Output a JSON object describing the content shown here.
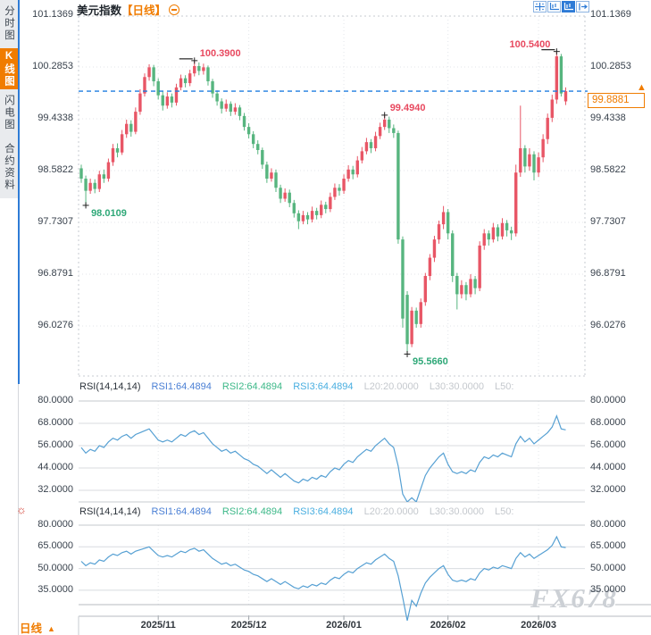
{
  "app": {
    "watermark": "FX678"
  },
  "header": {
    "title": "美元指数",
    "period_tag": "【日线】"
  },
  "toolbar": {
    "icons": [
      {
        "name": "crosshair-icon",
        "active": false
      },
      {
        "name": "axis-scale-icon",
        "active": false
      },
      {
        "name": "axis-scale-filled-icon",
        "active": true
      },
      {
        "name": "pop-out-icon",
        "active": false
      }
    ]
  },
  "sidebar": {
    "items": [
      {
        "label": "分时图",
        "active": false
      },
      {
        "label": "K线图",
        "active": true
      },
      {
        "label": "闪电图",
        "active": false
      },
      {
        "label": "合约资料",
        "active": false
      }
    ]
  },
  "colors": {
    "up": "#e85666",
    "down": "#57b57f",
    "accent": "#f07c00",
    "price_line": "#1e7de0",
    "rsi_line": "#56a0d3",
    "grid": "#e3e6ea",
    "panel_grid": "#d8dbdf",
    "border": "#c7cbd1",
    "axis_line": "#b7bbc1",
    "anno_high": "#e8495f",
    "anno_low": "#2fa878"
  },
  "current_price": {
    "value": "99.8881"
  },
  "annotations": [
    {
      "text": "100.3900",
      "type": "high",
      "index": 25,
      "label_side": "right",
      "marker_line": true
    },
    {
      "text": "99.4940",
      "type": "high",
      "index": 67,
      "label_side": "right",
      "marker_line": false
    },
    {
      "text": "100.5400",
      "type": "high",
      "index": 105,
      "label_side": "left",
      "marker_line": true
    },
    {
      "text": "98.0109",
      "type": "low",
      "index": 1,
      "label_side": "right",
      "marker_line": false
    },
    {
      "text": "95.5660",
      "type": "low",
      "index": 72,
      "label_side": "right",
      "marker_line": false
    }
  ],
  "rsi_panels": [
    {
      "header": {
        "name": "RSI(14,14,14)",
        "rsi1": "RSI1:64.4894",
        "rsi2": "RSI2:64.4894",
        "rsi3": "RSI3:64.4894",
        "l20": "L20:20.0000",
        "l30": "L30:30.0000",
        "l50": "L50:"
      },
      "levels": [
        "80.0000",
        "68.0000",
        "56.0000",
        "44.0000",
        "32.0000"
      ]
    },
    {
      "header": {
        "name": "RSI(14,14,14)",
        "rsi1": "RSI1:64.4894",
        "rsi2": "RSI2:64.4894",
        "rsi3": "RSI3:64.4894",
        "l20": "L20:20.0000",
        "l30": "L30:30.0000",
        "l50": "L50:"
      },
      "levels": [
        "80.0000",
        "65.0000",
        "50.0000",
        "35.0000"
      ]
    }
  ],
  "bottom_bar": {
    "period": "日线",
    "arrow": "▲"
  },
  "chart_data": {
    "type": "candlestick",
    "symbol": "美元指数",
    "interval": "日线",
    "y_axis": [
      "101.1369",
      "100.2853",
      "99.4338",
      "98.5822",
      "97.7307",
      "96.8791",
      "96.0276"
    ],
    "x_ticks": [
      {
        "label": "2025/11",
        "index": 17
      },
      {
        "label": "2025/12",
        "index": 37
      },
      {
        "label": "2026/01",
        "index": 58
      },
      {
        "label": "2026/02",
        "index": 81
      },
      {
        "label": "2026/03",
        "index": 101
      }
    ],
    "ohlc": [
      [
        98.62,
        98.68,
        98.38,
        98.45
      ],
      [
        98.45,
        98.5,
        98.0109,
        98.25
      ],
      [
        98.25,
        98.45,
        98.2,
        98.38
      ],
      [
        98.38,
        98.44,
        98.21,
        98.28
      ],
      [
        98.28,
        98.58,
        98.23,
        98.52
      ],
      [
        98.52,
        98.6,
        98.38,
        98.45
      ],
      [
        98.45,
        98.78,
        98.4,
        98.72
      ],
      [
        98.72,
        99.02,
        98.66,
        98.95
      ],
      [
        98.95,
        99.03,
        98.8,
        98.88
      ],
      [
        98.88,
        99.25,
        98.84,
        99.18
      ],
      [
        99.18,
        99.42,
        99.12,
        99.35
      ],
      [
        99.35,
        99.41,
        99.14,
        99.22
      ],
      [
        99.22,
        99.62,
        99.18,
        99.55
      ],
      [
        99.55,
        99.92,
        99.5,
        99.85
      ],
      [
        99.85,
        100.18,
        99.8,
        100.12
      ],
      [
        100.12,
        100.33,
        100.06,
        100.28
      ],
      [
        100.28,
        100.32,
        99.97,
        100.05
      ],
      [
        100.05,
        100.1,
        99.75,
        99.82
      ],
      [
        99.82,
        99.88,
        99.57,
        99.65
      ],
      [
        99.65,
        99.87,
        99.6,
        99.8
      ],
      [
        99.8,
        99.85,
        99.62,
        99.7
      ],
      [
        99.7,
        100.01,
        99.65,
        99.95
      ],
      [
        99.95,
        100.16,
        99.9,
        100.1
      ],
      [
        100.1,
        100.15,
        99.95,
        100.02
      ],
      [
        100.02,
        100.24,
        99.97,
        100.18
      ],
      [
        100.18,
        100.39,
        100.13,
        100.3
      ],
      [
        100.3,
        100.36,
        100.15,
        100.22
      ],
      [
        100.22,
        100.34,
        100.16,
        100.28
      ],
      [
        100.28,
        100.31,
        99.98,
        100.05
      ],
      [
        100.05,
        100.09,
        99.78,
        99.85
      ],
      [
        99.85,
        99.9,
        99.65,
        99.72
      ],
      [
        99.72,
        99.77,
        99.52,
        99.6
      ],
      [
        99.6,
        99.75,
        99.55,
        99.68
      ],
      [
        99.68,
        99.72,
        99.48,
        99.55
      ],
      [
        99.55,
        99.69,
        99.5,
        99.62
      ],
      [
        99.62,
        99.66,
        99.41,
        99.48
      ],
      [
        99.48,
        99.53,
        99.24,
        99.3
      ],
      [
        99.3,
        99.36,
        99.11,
        99.18
      ],
      [
        99.18,
        99.23,
        98.95,
        99.02
      ],
      [
        99.02,
        99.08,
        98.85,
        98.92
      ],
      [
        98.92,
        98.96,
        98.61,
        98.68
      ],
      [
        98.68,
        98.73,
        98.38,
        98.45
      ],
      [
        98.45,
        98.62,
        98.4,
        98.55
      ],
      [
        98.55,
        98.6,
        98.23,
        98.3
      ],
      [
        98.3,
        98.35,
        98.05,
        98.12
      ],
      [
        98.12,
        98.29,
        98.07,
        98.22
      ],
      [
        98.22,
        98.27,
        97.98,
        98.05
      ],
      [
        98.05,
        98.1,
        97.81,
        97.88
      ],
      [
        97.88,
        97.93,
        97.62,
        97.75
      ],
      [
        97.75,
        97.92,
        97.7,
        97.85
      ],
      [
        97.85,
        97.9,
        97.7,
        97.78
      ],
      [
        97.78,
        97.99,
        97.73,
        97.92
      ],
      [
        97.92,
        97.97,
        97.78,
        97.85
      ],
      [
        97.85,
        98.09,
        97.8,
        98.02
      ],
      [
        98.02,
        98.07,
        97.88,
        97.95
      ],
      [
        97.95,
        98.22,
        97.9,
        98.15
      ],
      [
        98.15,
        98.37,
        98.1,
        98.3
      ],
      [
        98.3,
        98.36,
        98.17,
        98.25
      ],
      [
        98.25,
        98.52,
        98.2,
        98.45
      ],
      [
        98.45,
        98.67,
        98.4,
        98.6
      ],
      [
        98.6,
        98.66,
        98.44,
        98.52
      ],
      [
        98.52,
        98.82,
        98.47,
        98.75
      ],
      [
        98.75,
        98.97,
        98.7,
        98.9
      ],
      [
        98.9,
        99.12,
        98.85,
        99.05
      ],
      [
        99.05,
        99.1,
        98.87,
        98.95
      ],
      [
        98.95,
        99.22,
        98.9,
        99.15
      ],
      [
        99.15,
        99.37,
        99.1,
        99.3
      ],
      [
        99.3,
        99.494,
        99.25,
        99.42
      ],
      [
        99.42,
        99.47,
        99.2,
        99.28
      ],
      [
        99.28,
        99.34,
        99.12,
        99.2
      ],
      [
        99.2,
        99.24,
        97.38,
        97.45
      ],
      [
        97.45,
        97.5,
        96.0,
        96.15
      ],
      [
        96.54,
        96.6,
        95.566,
        95.73
      ],
      [
        95.73,
        96.34,
        95.68,
        96.28
      ],
      [
        96.28,
        96.33,
        96.0,
        96.06
      ],
      [
        96.06,
        96.48,
        96.0,
        96.42
      ],
      [
        96.42,
        96.9,
        96.36,
        96.85
      ],
      [
        96.85,
        97.21,
        96.78,
        97.15
      ],
      [
        97.15,
        97.51,
        97.08,
        97.45
      ],
      [
        97.45,
        97.76,
        97.38,
        97.7
      ],
      [
        97.7,
        98.0,
        97.62,
        97.9
      ],
      [
        97.9,
        97.95,
        97.45,
        97.55
      ],
      [
        97.55,
        97.6,
        96.75,
        96.85
      ],
      [
        96.85,
        96.9,
        96.3,
        96.55
      ],
      [
        96.55,
        96.78,
        96.48,
        96.7
      ],
      [
        96.7,
        96.75,
        96.45,
        96.55
      ],
      [
        96.55,
        96.88,
        96.5,
        96.8
      ],
      [
        96.8,
        96.85,
        96.55,
        96.65
      ],
      [
        96.65,
        97.42,
        96.6,
        97.35
      ],
      [
        97.35,
        97.62,
        97.28,
        97.55
      ],
      [
        97.55,
        97.6,
        97.35,
        97.45
      ],
      [
        97.45,
        97.72,
        97.4,
        97.65
      ],
      [
        97.65,
        97.7,
        97.42,
        97.5
      ],
      [
        97.5,
        97.8,
        97.45,
        97.72
      ],
      [
        97.72,
        97.77,
        97.5,
        97.6
      ],
      [
        97.6,
        97.66,
        97.44,
        97.55
      ],
      [
        97.55,
        98.68,
        97.5,
        98.55
      ],
      [
        98.55,
        99.65,
        98.48,
        98.95
      ],
      [
        98.95,
        99.0,
        98.55,
        98.65
      ],
      [
        98.65,
        98.95,
        98.58,
        98.85
      ],
      [
        98.85,
        98.9,
        98.42,
        98.55
      ],
      [
        98.55,
        98.88,
        98.48,
        98.8
      ],
      [
        98.8,
        99.18,
        98.72,
        99.1
      ],
      [
        99.1,
        99.52,
        99.02,
        99.45
      ],
      [
        99.45,
        99.83,
        99.38,
        99.75
      ],
      [
        99.75,
        100.54,
        99.68,
        100.46
      ],
      [
        100.46,
        100.5,
        99.8,
        99.85
      ],
      [
        99.72,
        99.95,
        99.66,
        99.8881
      ]
    ],
    "rsi": [
      55,
      52,
      54,
      53,
      56,
      55,
      58,
      60,
      59,
      61,
      62,
      60,
      62,
      63,
      64,
      65,
      62,
      59,
      58,
      59,
      58,
      60,
      62,
      61,
      63,
      64,
      62,
      63,
      60,
      57,
      55,
      53,
      54,
      52,
      53,
      51,
      49,
      48,
      46,
      45,
      43,
      41,
      43,
      41,
      39,
      41,
      39,
      37,
      36,
      38,
      37,
      39,
      38,
      40,
      39,
      42,
      44,
      43,
      46,
      48,
      47,
      50,
      52,
      54,
      53,
      56,
      58,
      60,
      57,
      55,
      45,
      30,
      14,
      28,
      24,
      33,
      40,
      44,
      47,
      50,
      52,
      46,
      42,
      41,
      42,
      41,
      43,
      42,
      47,
      50,
      49,
      51,
      50,
      52,
      51,
      50,
      57,
      61,
      58,
      60,
      57,
      59,
      61,
      63,
      66,
      72,
      65,
      64.4894
    ]
  }
}
